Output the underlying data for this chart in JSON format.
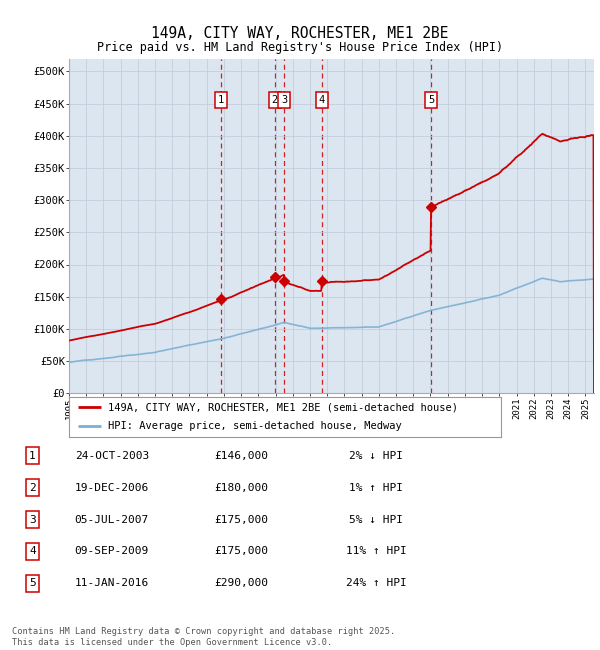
{
  "title": "149A, CITY WAY, ROCHESTER, ME1 2BE",
  "subtitle": "Price paid vs. HM Land Registry's House Price Index (HPI)",
  "ylabel_ticks": [
    "£0",
    "£50K",
    "£100K",
    "£150K",
    "£200K",
    "£250K",
    "£300K",
    "£350K",
    "£400K",
    "£450K",
    "£500K"
  ],
  "ytick_values": [
    0,
    50000,
    100000,
    150000,
    200000,
    250000,
    300000,
    350000,
    400000,
    450000,
    500000
  ],
  "ylim": [
    0,
    520000
  ],
  "xlim_start": 1995.0,
  "xlim_end": 2025.5,
  "sale_markers": [
    {
      "num": 1,
      "year": 2003.81,
      "price": 146000,
      "label": "1"
    },
    {
      "num": 2,
      "year": 2006.96,
      "price": 180000,
      "label": "2"
    },
    {
      "num": 3,
      "year": 2007.51,
      "price": 175000,
      "label": "3"
    },
    {
      "num": 4,
      "year": 2009.69,
      "price": 175000,
      "label": "4"
    },
    {
      "num": 5,
      "year": 2016.04,
      "price": 290000,
      "label": "5"
    }
  ],
  "table_rows": [
    {
      "num": 1,
      "date": "24-OCT-2003",
      "price": "£146,000",
      "hpi": "2% ↓ HPI"
    },
    {
      "num": 2,
      "date": "19-DEC-2006",
      "price": "£180,000",
      "hpi": "1% ↑ HPI"
    },
    {
      "num": 3,
      "date": "05-JUL-2007",
      "price": "£175,000",
      "hpi": "5% ↓ HPI"
    },
    {
      "num": 4,
      "date": "09-SEP-2009",
      "price": "£175,000",
      "hpi": "11% ↑ HPI"
    },
    {
      "num": 5,
      "date": "11-JAN-2016",
      "price": "£290,000",
      "hpi": "24% ↑ HPI"
    }
  ],
  "legend_line1": "149A, CITY WAY, ROCHESTER, ME1 2BE (semi-detached house)",
  "legend_line2": "HPI: Average price, semi-detached house, Medway",
  "footer": "Contains HM Land Registry data © Crown copyright and database right 2025.\nThis data is licensed under the Open Government Licence v3.0.",
  "red_color": "#cc0000",
  "blue_color": "#7bafd4",
  "marker_box_color": "#cc0000",
  "dashed_line_color": "#cc0000",
  "bg_color": "#dce6f0",
  "grid_color": "#c0c8d8"
}
